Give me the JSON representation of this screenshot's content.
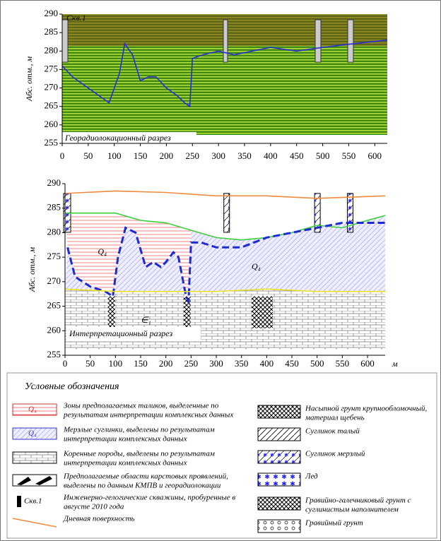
{
  "chart_data": [
    {
      "type": "line",
      "annotations": [
        "Скв.1",
        "Георадиолокационный разрез"
      ],
      "ylabel": "Абс. отм., м",
      "xlim": [
        0,
        624
      ],
      "ylim": [
        255,
        290
      ],
      "xticks": [
        0,
        50,
        100,
        150,
        200,
        250,
        300,
        350,
        400,
        450,
        500,
        550,
        600
      ],
      "yticks": [
        255,
        260,
        265,
        270,
        275,
        280,
        285,
        290
      ],
      "series": [
        {
          "color": "#2b2bd6",
          "x": [
            0,
            20,
            50,
            90,
            110,
            120,
            135,
            150,
            165,
            180,
            200,
            220,
            235,
            245,
            250,
            270,
            300,
            330,
            400,
            450,
            500,
            560,
            624
          ],
          "values": [
            276,
            273,
            270,
            266,
            274,
            282,
            279,
            272,
            273,
            273,
            270,
            268,
            266,
            265,
            278,
            279,
            280,
            279,
            281,
            280,
            281,
            282,
            283
          ]
        }
      ]
    },
    {
      "type": "line",
      "annotations": [
        "Q₄",
        "Q₄",
        "∈₁",
        "Интерпретационный разрез"
      ],
      "ylabel": "Абс. отм., м",
      "xlabel": "м",
      "xlim": [
        0,
        635
      ],
      "ylim": [
        255,
        290
      ],
      "xticks": [
        0,
        50,
        100,
        150,
        200,
        250,
        300,
        350,
        400,
        450,
        500,
        550,
        600
      ],
      "yticks": [
        255,
        260,
        265,
        270,
        275,
        280,
        285,
        290
      ],
      "series": [
        {
          "color": "#f08a3c",
          "x": [
            0,
            100,
            200,
            300,
            400,
            500,
            635
          ],
          "values": [
            288,
            288.5,
            288.2,
            287.5,
            287.5,
            287,
            287.5
          ]
        },
        {
          "color": "#3ccf3c",
          "x": [
            0,
            100,
            150,
            200,
            250,
            300,
            350,
            400,
            450,
            500,
            550,
            600,
            635
          ],
          "values": [
            284,
            284,
            282.5,
            282,
            280.5,
            279,
            278.5,
            279,
            280,
            281.5,
            281,
            282.5,
            283.5
          ]
        },
        {
          "color": "#1e2bd0",
          "x": [
            5,
            20,
            50,
            80,
            95,
            105,
            120,
            140,
            160,
            175,
            190,
            200,
            215,
            225,
            240,
            245,
            250,
            270,
            300,
            350,
            400,
            450,
            500,
            550,
            635
          ],
          "values": [
            277,
            271,
            269,
            268,
            267,
            275,
            281,
            280,
            273,
            274,
            273,
            274,
            276,
            275,
            267,
            266,
            278,
            278,
            277,
            277,
            279,
            280,
            281,
            282,
            282
          ]
        },
        {
          "color": "#e8e020",
          "x": [
            0,
            100,
            200,
            300,
            400,
            500,
            635
          ],
          "values": [
            268.5,
            268,
            268,
            268,
            268.5,
            268,
            268
          ]
        }
      ]
    }
  ],
  "legend": {
    "title": "Условные обозначения",
    "left": [
      {
        "symbol": "Q₄",
        "text": [
          "Зоны предполагаемых таликов, выделенные по",
          "результатам интерпретации комплексных данных"
        ]
      },
      {
        "symbol": "Q₄",
        "text": [
          "Мерзлые суглинки, выделены по результатам",
          "интерпретации комплексных данных"
        ]
      },
      {
        "text": [
          "Коренные породы, выделены по результатам",
          "интерпретации комплексных данных"
        ]
      },
      {
        "text": [
          "Предполагаемые области карстовых проявлений,",
          "выделены по данным КМПВ и георадиолокации"
        ]
      },
      {
        "symbol": "Скв.1",
        "text": [
          "Инженерно-гелогические скважины, пробуренные в",
          "августе 2010 года"
        ]
      },
      {
        "text": [
          "Дневная поверхность"
        ]
      }
    ],
    "right": [
      {
        "text": [
          "Насыпной грунт крупнообломочный,",
          "материал щебень"
        ]
      },
      {
        "text": [
          "Суглинок талый"
        ]
      },
      {
        "text": [
          "Суглинок мерзлый"
        ]
      },
      {
        "text": [
          "Лед"
        ]
      },
      {
        "text": [
          "Гравийно-галечниковый грунт с",
          "суглинистым наполнителем"
        ]
      },
      {
        "text": [
          "Гравийный грунт"
        ]
      }
    ]
  }
}
